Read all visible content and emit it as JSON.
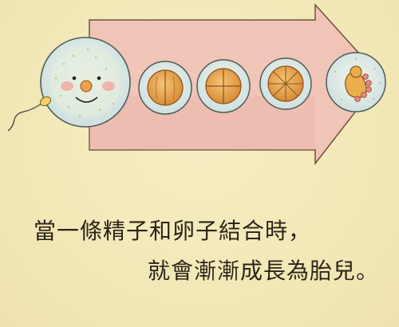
{
  "caption": {
    "line1": "當一條精子和卵子結合時，",
    "line2": "就會漸漸成長為胎兒。"
  },
  "stages": [
    {
      "name": "egg-with-face"
    },
    {
      "name": "two-cell"
    },
    {
      "name": "four-cell"
    },
    {
      "name": "eight-cell"
    },
    {
      "name": "fetus"
    }
  ],
  "colors": {
    "background": "#f3e9b8",
    "arrow_fill": "#f1c3b8",
    "cell_fill": "#e7a54b",
    "circle_fill": "#dfeaea",
    "ink": "#2a2418"
  }
}
